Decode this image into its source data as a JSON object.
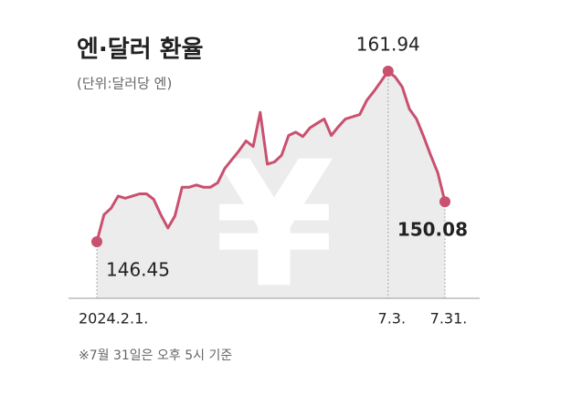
{
  "chart_data": {
    "type": "line",
    "title": "엔·달러 환율",
    "subtitle": "(단위:달러당 엔)",
    "note": "※7월 31일은 오후 5시 기준",
    "color": "#c9506f",
    "categories": [
      "2024.2.1.",
      null,
      null,
      null,
      null,
      null,
      null,
      null,
      null,
      null,
      null,
      null,
      null,
      null,
      null,
      null,
      null,
      null,
      null,
      null,
      null,
      null,
      null,
      null,
      null,
      null,
      null,
      null,
      null,
      null,
      null,
      null,
      null,
      null,
      null,
      null,
      null,
      null,
      null,
      null,
      null,
      "7.3.",
      null,
      null,
      null,
      null,
      null,
      null,
      null,
      "7.31."
    ],
    "values": [
      146.45,
      148.9,
      149.5,
      150.6,
      150.4,
      150.6,
      150.8,
      150.8,
      150.3,
      148.9,
      147.7,
      148.8,
      151.4,
      151.4,
      151.6,
      151.4,
      151.4,
      151.8,
      153.1,
      153.9,
      154.7,
      155.6,
      155.1,
      158.2,
      153.5,
      153.7,
      154.3,
      156.1,
      156.4,
      156.0,
      156.8,
      157.2,
      157.6,
      156.1,
      156.9,
      157.6,
      157.8,
      158.0,
      159.3,
      160.1,
      161.0,
      161.94,
      161.4,
      160.5,
      158.5,
      157.6,
      156.0,
      154.3,
      152.7,
      150.08
    ]
  }
}
